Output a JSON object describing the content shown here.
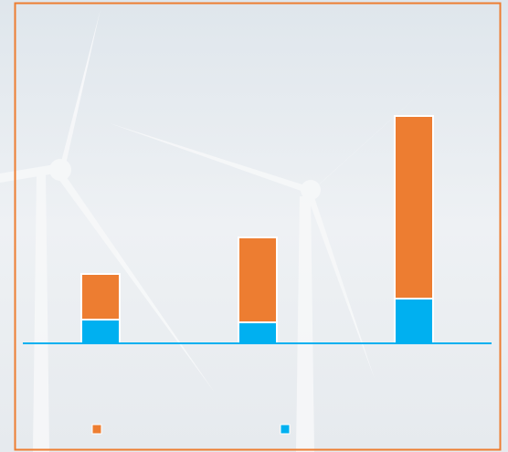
{
  "chart_data": {
    "type": "bar",
    "stacked": true,
    "categories": [
      null,
      null,
      null
    ],
    "series": [
      {
        "color": "#00b0f0",
        "values": [
          26,
          23,
          49
        ]
      },
      {
        "color": "#ed7d31",
        "values": [
          50,
          93,
          200
        ]
      }
    ],
    "ylim": [
      0,
      370
    ],
    "baseline_color": "#00b0f0",
    "frame_color": "#ed7d31",
    "legend": "bottom"
  }
}
